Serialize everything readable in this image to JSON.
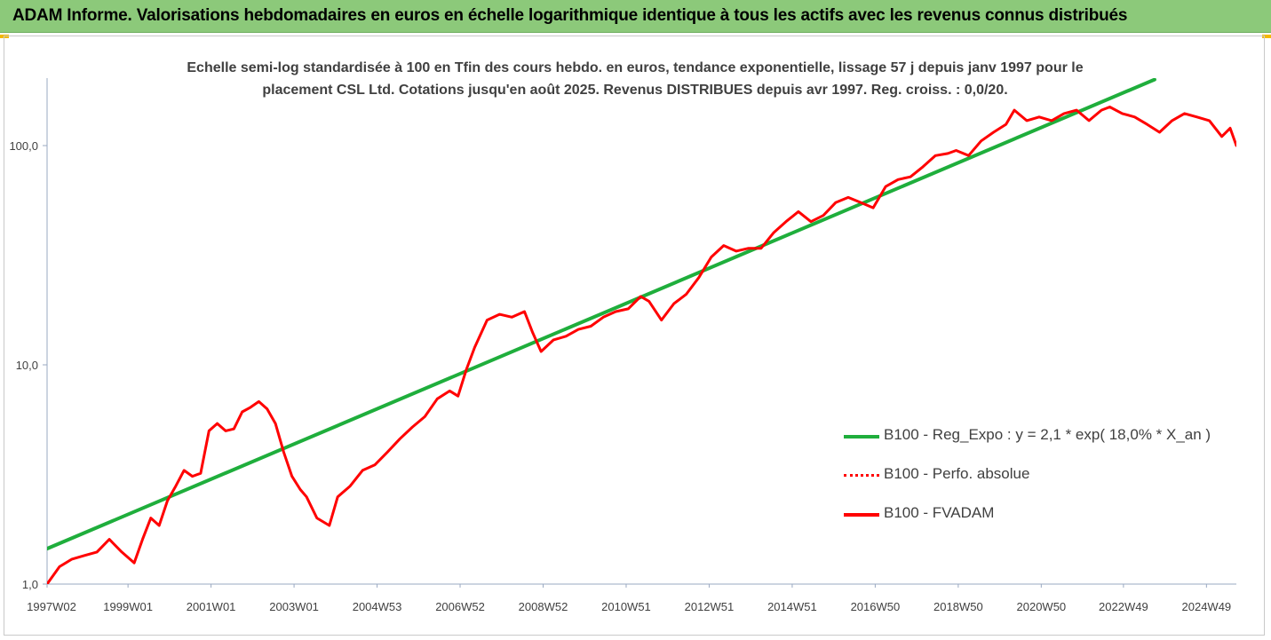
{
  "banner": {
    "title": "ADAM Informe. Valorisations hebdomadaires en euros en échelle logarithmique identique à tous les actifs avec les revenus connus distribués"
  },
  "colors": {
    "banner_bg": "#8cc97a",
    "accent_corner": "#f3b800",
    "trend_green": "#1fae3c",
    "series_red": "#ff0000"
  },
  "chart_data": {
    "type": "line",
    "title": "Echelle semi-log standardisée à 100 en Tfin des cours hebdo. en euros, tendance exponentielle, lissage 57 j depuis janv 1997 pour le placement CSL Ltd. Cotations jusqu'en août 2025. Revenus DISTRIBUES depuis avr 1997. Reg. croiss. : 0,0/20.",
    "title_lines": [
      "Echelle semi-log standardisée à 100 en Tfin des cours hebdo. en euros, tendance exponentielle, lissage 57 j depuis janv 1997 pour le",
      "placement CSL Ltd. Cotations jusqu'en août 2025. Revenus DISTRIBUES depuis avr 1997. Reg. croiss. : 0,0/20."
    ],
    "y_scale": "log",
    "ylim": [
      1,
      200
    ],
    "y_ticks": [
      1,
      10,
      100
    ],
    "y_tick_labels": [
      "1,0",
      "10,0",
      "100,0"
    ],
    "xlim": [
      1997.0,
      2025.65
    ],
    "x_ticks": [
      1997.0,
      1998.95,
      2000.95,
      2002.95,
      2004.95,
      2006.95,
      2008.95,
      2010.95,
      2012.95,
      2014.95,
      2016.95,
      2018.95,
      2020.95,
      2022.93,
      2024.93
    ],
    "x_tick_labels": [
      "1997W02",
      "1999W01",
      "2001W01",
      "2003W01",
      "2004W53",
      "2006W52",
      "2008W52",
      "2010W51",
      "2012W51",
      "2014W51",
      "2016W50",
      "2018W50",
      "2020W50",
      "2022W49",
      "2024W49"
    ],
    "legend_position": "right",
    "series": [
      {
        "name": "B100 - Reg_Expo : y = 2,1 * exp( 18,0% *  X_an )",
        "style": "solid",
        "color": "#1fae3c",
        "x": [
          1997.0,
          2023.68
        ],
        "y": [
          1.45,
          200
        ]
      },
      {
        "name": "B100 - Perfo. absolue",
        "style": "dotted",
        "color": "#ff0000",
        "x": [],
        "y": []
      },
      {
        "name": "B100 - FVADAM",
        "style": "solid",
        "color": "#ff0000",
        "x": [
          1997.0,
          1997.3,
          1997.6,
          1997.9,
          1998.2,
          1998.5,
          1998.8,
          1999.1,
          1999.3,
          1999.5,
          1999.7,
          1999.9,
          2000.1,
          2000.3,
          2000.5,
          2000.7,
          2000.9,
          2001.1,
          2001.3,
          2001.5,
          2001.7,
          2001.9,
          2002.1,
          2002.3,
          2002.5,
          2002.7,
          2002.9,
          2003.1,
          2003.25,
          2003.5,
          2003.8,
          2004.0,
          2004.3,
          2004.6,
          2004.9,
          2005.2,
          2005.5,
          2005.8,
          2006.1,
          2006.4,
          2006.7,
          2006.9,
          2007.1,
          2007.3,
          2007.6,
          2007.9,
          2008.2,
          2008.5,
          2008.7,
          2008.9,
          2009.2,
          2009.5,
          2009.8,
          2010.1,
          2010.4,
          2010.7,
          2011.0,
          2011.3,
          2011.5,
          2011.8,
          2012.1,
          2012.4,
          2012.7,
          2013.0,
          2013.3,
          2013.6,
          2013.9,
          2014.2,
          2014.5,
          2014.8,
          2015.1,
          2015.4,
          2015.7,
          2016.0,
          2016.3,
          2016.6,
          2016.9,
          2017.2,
          2017.5,
          2017.8,
          2018.1,
          2018.4,
          2018.7,
          2018.9,
          2019.2,
          2019.5,
          2019.8,
          2020.1,
          2020.3,
          2020.6,
          2020.9,
          2021.2,
          2021.5,
          2021.8,
          2022.1,
          2022.4,
          2022.6,
          2022.9,
          2023.2,
          2023.5,
          2023.8,
          2024.1,
          2024.4,
          2024.7,
          2025.0,
          2025.3,
          2025.5,
          2025.65
        ],
        "y": [
          1.0,
          1.2,
          1.3,
          1.35,
          1.4,
          1.6,
          1.4,
          1.25,
          1.6,
          2.0,
          1.85,
          2.4,
          2.8,
          3.3,
          3.1,
          3.2,
          5.0,
          5.4,
          5.0,
          5.1,
          6.1,
          6.4,
          6.8,
          6.3,
          5.4,
          4.0,
          3.1,
          2.7,
          2.5,
          2.0,
          1.85,
          2.5,
          2.8,
          3.3,
          3.5,
          4.0,
          4.6,
          5.2,
          5.8,
          7.0,
          7.6,
          7.2,
          9.5,
          12.0,
          16.0,
          17.0,
          16.5,
          17.5,
          14.0,
          11.5,
          13.0,
          13.5,
          14.5,
          15.0,
          16.5,
          17.5,
          18.0,
          20.5,
          19.5,
          16.0,
          19.0,
          21.0,
          25.0,
          31.0,
          35.0,
          33.0,
          34.0,
          34.0,
          40.0,
          45.0,
          50.0,
          45.0,
          48.0,
          55.0,
          58.0,
          55.0,
          52.0,
          65.0,
          70.0,
          72.0,
          80.0,
          90.0,
          92.0,
          95.0,
          90.0,
          105.0,
          115.0,
          125.0,
          145.0,
          130.0,
          135.0,
          130.0,
          140.0,
          145.0,
          130.0,
          145.0,
          150.0,
          140.0,
          135.0,
          125.0,
          115.0,
          130.0,
          140.0,
          135.0,
          130.0,
          110.0,
          120.0,
          100.0
        ]
      }
    ]
  }
}
